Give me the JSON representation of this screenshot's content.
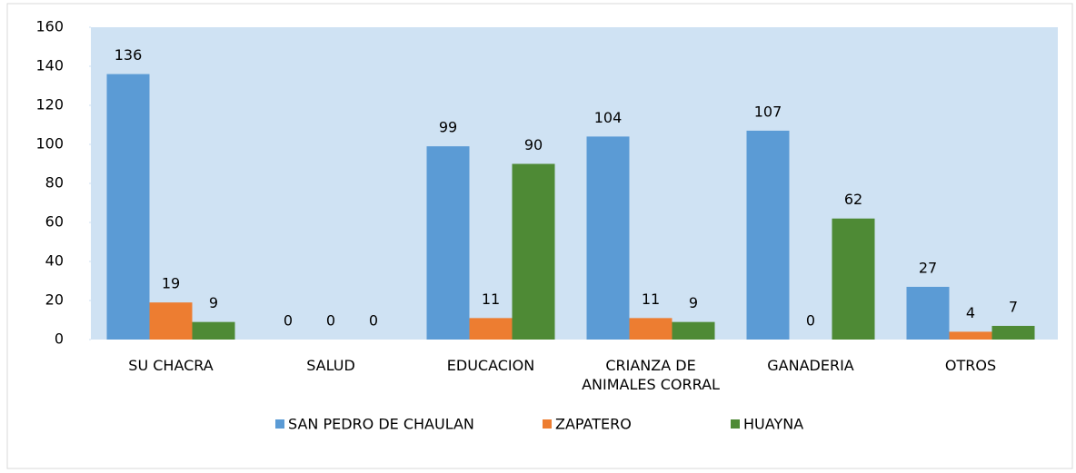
{
  "chart_data": {
    "type": "bar",
    "categories": [
      "SU CHACRA",
      "SALUD",
      "EDUCACION",
      "CRIANZA DE ANIMALES CORRAL",
      "GANADERIA",
      "OTROS"
    ],
    "series": [
      {
        "name": "SAN PEDRO DE CHAULAN",
        "color": "#5b9bd5",
        "values": [
          136,
          0,
          99,
          104,
          107,
          27
        ]
      },
      {
        "name": "ZAPATERO",
        "color": "#ed7d31",
        "values": [
          19,
          0,
          11,
          11,
          0,
          4
        ]
      },
      {
        "name": "HUAYNA",
        "color": "#4e8a35",
        "values": [
          9,
          0,
          90,
          9,
          62,
          7
        ]
      }
    ],
    "ylim": [
      0,
      160
    ],
    "yticks": [
      0,
      20,
      40,
      60,
      80,
      100,
      120,
      140,
      160
    ],
    "legend": "bottom"
  }
}
